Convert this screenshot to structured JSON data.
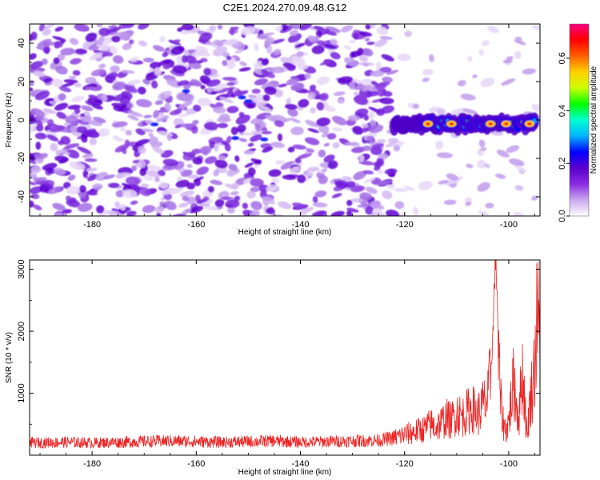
{
  "figure": {
    "title": "C2E1.2024.270.09.48.G12"
  },
  "chart_data": [
    {
      "type": "heatmap",
      "name": "spectrogram",
      "xlabel": "Height of straight line (km)",
      "ylabel": "Frequency (Hz)",
      "xlim": [
        -192,
        -94
      ],
      "ylim": [
        -50,
        50
      ],
      "xticks": [
        -180,
        -160,
        -140,
        -120,
        -100
      ],
      "yticks": [
        -40,
        -20,
        0,
        20,
        40
      ],
      "colorbar": {
        "label": "Normalized spectral amplitude",
        "range": [
          0.0,
          0.73
        ],
        "ticks": [
          0.0,
          0.2,
          0.4,
          0.6
        ],
        "colors": [
          "#ffffff",
          "#c9a8ee",
          "#8a2be2",
          "#5a00cc",
          "#0000ff",
          "#00b4ff",
          "#00ffd0",
          "#00ff00",
          "#ccff00",
          "#ffd000",
          "#ff6000",
          "#ff0000",
          "#ff0080"
        ]
      },
      "signal_track": {
        "x_range": [
          -122,
          -95
        ],
        "frequency": -2,
        "peak_amplitude": 0.65
      }
    },
    {
      "type": "line",
      "name": "snr",
      "xlabel": "Height of straight line (km)",
      "ylabel": "SNR (10 * v/v)",
      "xlim": [
        -192,
        -94
      ],
      "ylim": [
        0,
        3150
      ],
      "xticks": [
        -180,
        -160,
        -140,
        -120,
        -100
      ],
      "yticks": [
        1000,
        2000,
        3000
      ],
      "color": "#ee2222",
      "x": [
        -192,
        -185,
        -180,
        -175,
        -170,
        -165,
        -160,
        -155,
        -150,
        -145,
        -140,
        -135,
        -130,
        -125,
        -122,
        -120,
        -118,
        -116,
        -115,
        -114,
        -113,
        -112,
        -111,
        -110,
        -109,
        -108,
        -107,
        -106,
        -105,
        -104,
        -103.5,
        -103,
        -102.7,
        -102.5,
        -102.2,
        -102,
        -101.5,
        -101,
        -100.5,
        -100,
        -99.5,
        -99,
        -98.5,
        -98,
        -97.5,
        -97,
        -96.5,
        -96,
        -95.5,
        -95,
        -94.5,
        -94
      ],
      "y": [
        200,
        210,
        200,
        210,
        220,
        230,
        220,
        210,
        220,
        230,
        210,
        220,
        230,
        240,
        280,
        330,
        380,
        430,
        500,
        450,
        520,
        600,
        560,
        700,
        620,
        700,
        760,
        650,
        800,
        900,
        1300,
        2000,
        3000,
        3100,
        2700,
        1600,
        800,
        500,
        400,
        550,
        900,
        1200,
        800,
        600,
        1400,
        1000,
        300,
        800,
        1100,
        1500,
        2300,
        1700
      ]
    }
  ]
}
